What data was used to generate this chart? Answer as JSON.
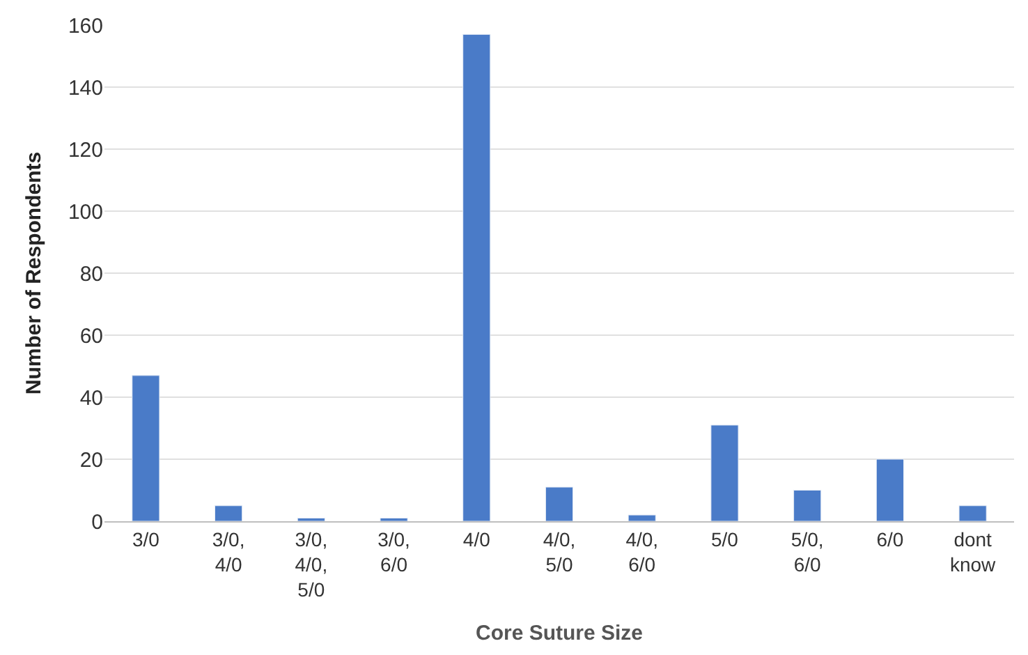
{
  "chart_data": {
    "type": "bar",
    "xlabel": "Core Suture Size",
    "ylabel": "Number of Respondents",
    "categories": [
      "3/0",
      "3/0, 4/0",
      "3/0, 4/0, 5/0",
      "3/0, 6/0",
      "4/0",
      "4/0, 5/0",
      "4/0, 6/0",
      "5/0",
      "5/0, 6/0",
      "6/0",
      "dont know"
    ],
    "values": [
      47,
      5,
      1,
      1,
      157,
      11,
      2,
      31,
      10,
      20,
      5
    ],
    "color": "#4a7bc8",
    "ylim": [
      0,
      160
    ],
    "yticks": [
      0,
      20,
      40,
      60,
      80,
      100,
      120,
      140,
      160
    ],
    "grid": "y",
    "legend": false
  }
}
